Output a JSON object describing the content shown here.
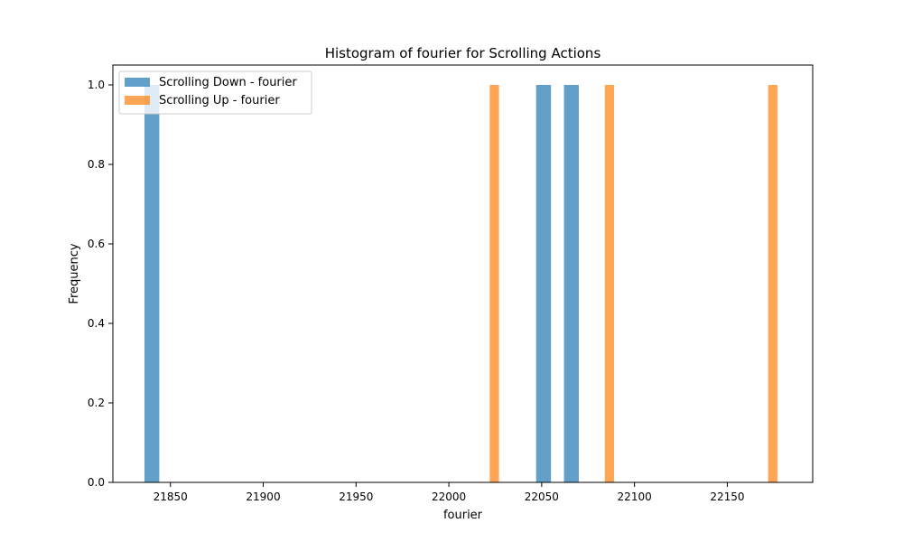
{
  "chart_data": {
    "type": "bar",
    "title": "Histogram of fourier for Scrolling Actions",
    "xlabel": "fourier",
    "ylabel": "Frequency",
    "xlim": [
      21819,
      22196
    ],
    "ylim": [
      0,
      1.05
    ],
    "xticks": [
      21850,
      21900,
      21950,
      22000,
      22050,
      22100,
      22150
    ],
    "yticks": [
      0.0,
      0.2,
      0.4,
      0.6,
      0.8,
      1.0
    ],
    "grid": false,
    "legend_position": "top-left",
    "series": [
      {
        "name": "Scrolling Down - fourier",
        "color": "#1f77b4",
        "bars": [
          {
            "x0": 21836,
            "x1": 21844,
            "value": 1
          },
          {
            "x0": 22047,
            "x1": 22055,
            "value": 1
          },
          {
            "x0": 22062,
            "x1": 22070,
            "value": 1
          }
        ]
      },
      {
        "name": "Scrolling Up - fourier",
        "color": "#ff7f0e",
        "bars": [
          {
            "x0": 22022,
            "x1": 22027,
            "value": 1
          },
          {
            "x0": 22084,
            "x1": 22089,
            "value": 1
          },
          {
            "x0": 22172,
            "x1": 22177,
            "value": 1
          }
        ]
      }
    ]
  }
}
